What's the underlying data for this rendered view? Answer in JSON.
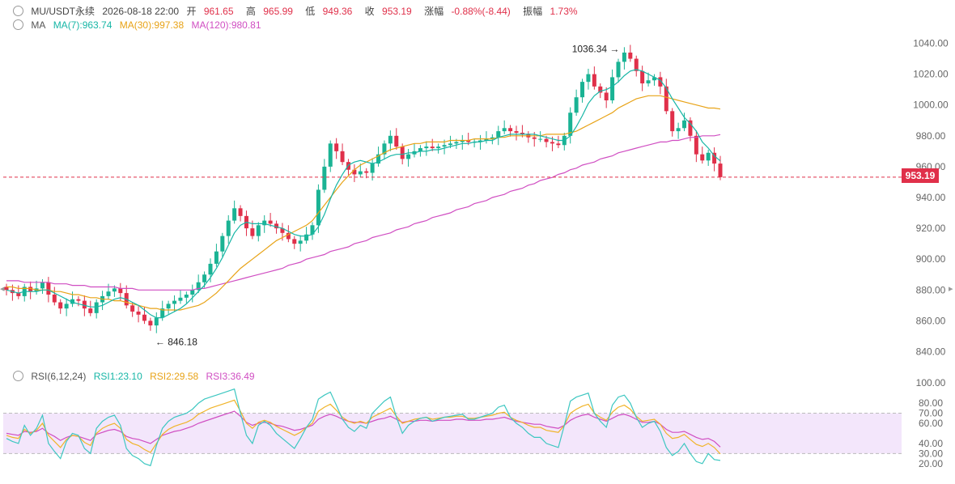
{
  "header": {
    "symbol": "MU/USDT永续",
    "datetime": "2026-08-18 22:00",
    "open_label": "开",
    "open": "961.65",
    "high_label": "高",
    "high": "965.99",
    "low_label": "低",
    "low": "949.36",
    "close_label": "收",
    "close": "953.19",
    "change_label": "涨幅",
    "change": "-0.88%(-8.44)",
    "amp_label": "振幅",
    "amp": "1.73%"
  },
  "ma_legend": {
    "label": "MA",
    "ma7": "MA(7):963.74",
    "ma30": "MA(30):997.38",
    "ma120": "MA(120):980.81"
  },
  "rsi_legend": {
    "label": "RSI(6,12,24)",
    "rsi1": "RSI1:23.10",
    "rsi2": "RSI2:29.58",
    "rsi3": "RSI3:36.49"
  },
  "price_tag": "953.19",
  "annotations": {
    "high_mark": "1036.34",
    "low_mark": "846.18"
  },
  "colors": {
    "up": "#1ab394",
    "down": "#e0304a",
    "ma7": "#17b6a6",
    "ma30": "#e8a317",
    "ma120": "#d04ec2",
    "rsi1": "#3dc7c1",
    "rsi2": "#f0b429",
    "rsi3": "#d04ec2",
    "rsi_band": "#f3e6fb"
  },
  "chart_data": {
    "type": "candlestick",
    "price_axis_ticks": [
      "1040.00",
      "1020.00",
      "1000.00",
      "980.00",
      "960.00",
      "940.00",
      "920.00",
      "900.00",
      "880.00",
      "860.00",
      "840.00"
    ],
    "price_ylim": [
      835,
      1045
    ],
    "rsi_axis_ticks": [
      "100.00",
      "80.00",
      "70.00",
      "60.00",
      "40.00",
      "30.00",
      "20.00"
    ],
    "rsi_ylim": [
      15,
      105
    ],
    "rsi_band": [
      30,
      70
    ],
    "last_price": 953.19,
    "close": [
      880,
      878,
      876,
      882,
      879,
      881,
      885,
      877,
      872,
      868,
      871,
      874,
      873,
      868,
      865,
      872,
      876,
      879,
      881,
      878,
      870,
      866,
      864,
      860,
      857,
      862,
      868,
      871,
      873,
      875,
      877,
      880,
      885,
      890,
      897,
      905,
      915,
      925,
      933,
      928,
      920,
      915,
      922,
      925,
      923,
      920,
      917,
      913,
      910,
      912,
      916,
      922,
      945,
      960,
      975,
      970,
      963,
      958,
      955,
      957,
      956,
      962,
      968,
      975,
      980,
      973,
      965,
      968,
      970,
      972,
      973,
      972,
      973,
      974,
      975,
      976,
      977,
      976,
      976,
      977,
      978,
      979,
      983,
      985,
      983,
      982,
      981,
      979,
      978,
      978,
      976,
      975,
      974,
      980,
      995,
      1005,
      1015,
      1020,
      1012,
      1008,
      1003,
      1018,
      1028,
      1034,
      1030,
      1022,
      1014,
      1016,
      1018,
      1012,
      996,
      983,
      985,
      990,
      980,
      968,
      964,
      969,
      962,
      953.19
    ],
    "ma7": [
      880,
      879,
      878,
      879,
      879,
      879,
      880,
      880,
      878,
      876,
      874,
      872,
      871,
      870,
      869,
      869,
      870,
      872,
      874,
      875,
      874,
      872,
      870,
      867,
      864,
      862,
      862,
      864,
      866,
      868,
      871,
      875,
      879,
      883,
      888,
      894,
      901,
      909,
      917,
      922,
      924,
      923,
      923,
      923,
      922,
      921,
      920,
      918,
      916,
      915,
      915,
      916,
      921,
      929,
      939,
      948,
      955,
      961,
      963,
      964,
      963,
      962,
      963,
      965,
      967,
      968,
      968,
      969,
      969,
      970,
      970,
      971,
      971,
      972,
      973,
      974,
      975,
      975,
      976,
      976,
      977,
      977,
      979,
      980,
      981,
      981,
      981,
      981,
      981,
      980,
      979,
      978,
      977,
      977,
      980,
      986,
      993,
      1001,
      1006,
      1009,
      1010,
      1012,
      1015,
      1019,
      1022,
      1023,
      1022,
      1020,
      1018,
      1016,
      1011,
      1004,
      998,
      992,
      988,
      983,
      976,
      972,
      967,
      963.74
    ],
    "ma30": [
      882,
      882,
      881,
      881,
      881,
      880,
      880,
      880,
      879,
      879,
      878,
      877,
      877,
      876,
      875,
      875,
      874,
      874,
      873,
      873,
      872,
      871,
      870,
      869,
      868,
      868,
      867,
      867,
      867,
      867,
      868,
      869,
      870,
      872,
      875,
      878,
      882,
      886,
      890,
      894,
      897,
      900,
      903,
      906,
      909,
      912,
      914,
      916,
      918,
      920,
      922,
      925,
      930,
      935,
      940,
      945,
      950,
      954,
      958,
      961,
      963,
      965,
      967,
      969,
      971,
      972,
      973,
      974,
      975,
      975,
      976,
      976,
      976,
      976,
      977,
      977,
      977,
      977,
      978,
      978,
      978,
      978,
      979,
      979,
      980,
      980,
      980,
      980,
      980,
      980,
      981,
      981,
      981,
      981,
      982,
      983,
      985,
      987,
      989,
      991,
      993,
      995,
      998,
      1000,
      1002,
      1004,
      1005,
      1006,
      1006,
      1006,
      1005,
      1004,
      1003,
      1002,
      1001,
      1000,
      999,
      998,
      998,
      997.38
    ],
    "ma120": [
      886,
      886,
      886,
      885,
      885,
      885,
      885,
      885,
      884,
      884,
      884,
      883,
      883,
      883,
      882,
      882,
      882,
      882,
      882,
      881,
      881,
      881,
      880,
      880,
      880,
      880,
      880,
      880,
      880,
      880,
      880,
      880,
      881,
      881,
      882,
      883,
      884,
      885,
      886,
      887,
      888,
      889,
      890,
      891,
      892,
      893,
      894,
      896,
      897,
      898,
      900,
      901,
      902,
      903,
      905,
      906,
      907,
      908,
      910,
      911,
      912,
      914,
      915,
      916,
      917,
      919,
      920,
      921,
      923,
      924,
      925,
      927,
      928,
      929,
      930,
      932,
      933,
      934,
      936,
      937,
      938,
      940,
      941,
      942,
      944,
      945,
      946,
      948,
      949,
      951,
      952,
      953,
      955,
      956,
      958,
      959,
      961,
      962,
      963,
      965,
      966,
      967,
      969,
      970,
      971,
      972,
      973,
      974,
      975,
      976,
      976,
      977,
      977,
      978,
      979,
      979,
      980,
      980,
      980,
      980.81
    ],
    "rsi6": [
      45,
      42,
      40,
      58,
      48,
      55,
      68,
      40,
      32,
      25,
      42,
      50,
      48,
      35,
      30,
      55,
      62,
      66,
      68,
      58,
      35,
      28,
      25,
      20,
      18,
      38,
      55,
      62,
      66,
      68,
      70,
      74,
      80,
      84,
      86,
      88,
      90,
      92,
      94,
      70,
      48,
      40,
      58,
      62,
      58,
      50,
      45,
      40,
      35,
      45,
      56,
      64,
      84,
      88,
      91,
      78,
      64,
      56,
      52,
      58,
      55,
      70,
      76,
      82,
      86,
      66,
      50,
      58,
      62,
      65,
      66,
      62,
      64,
      66,
      67,
      68,
      69,
      64,
      64,
      66,
      68,
      70,
      76,
      78,
      66,
      60,
      56,
      50,
      46,
      46,
      40,
      38,
      36,
      58,
      82,
      86,
      88,
      90,
      70,
      62,
      56,
      78,
      86,
      88,
      80,
      66,
      56,
      60,
      62,
      52,
      36,
      28,
      32,
      40,
      30,
      22,
      20,
      30,
      24,
      23.1
    ],
    "rsi12": [
      48,
      46,
      45,
      54,
      50,
      53,
      60,
      48,
      42,
      36,
      44,
      48,
      47,
      41,
      38,
      50,
      55,
      58,
      60,
      55,
      44,
      40,
      38,
      34,
      31,
      40,
      49,
      54,
      57,
      59,
      61,
      64,
      69,
      72,
      75,
      77,
      79,
      81,
      83,
      72,
      60,
      55,
      61,
      63,
      61,
      57,
      54,
      51,
      48,
      51,
      56,
      60,
      72,
      76,
      79,
      73,
      66,
      62,
      60,
      62,
      60,
      66,
      69,
      72,
      75,
      67,
      60,
      62,
      64,
      65,
      66,
      64,
      65,
      66,
      66,
      67,
      67,
      65,
      65,
      66,
      67,
      68,
      70,
      71,
      66,
      63,
      61,
      58,
      56,
      56,
      53,
      52,
      51,
      58,
      70,
      74,
      77,
      79,
      70,
      66,
      63,
      71,
      76,
      78,
      74,
      67,
      62,
      63,
      64,
      59,
      50,
      45,
      46,
      49,
      44,
      39,
      37,
      40,
      36,
      29.58
    ],
    "rsi24": [
      50,
      49,
      48,
      52,
      51,
      52,
      55,
      50,
      47,
      43,
      46,
      48,
      47,
      45,
      43,
      49,
      51,
      53,
      54,
      52,
      47,
      45,
      44,
      42,
      40,
      44,
      48,
      50,
      52,
      53,
      55,
      57,
      60,
      62,
      64,
      66,
      68,
      70,
      72,
      67,
      61,
      58,
      60,
      61,
      60,
      58,
      57,
      55,
      53,
      54,
      56,
      58,
      64,
      67,
      69,
      67,
      64,
      62,
      61,
      61,
      60,
      62,
      64,
      65,
      67,
      64,
      61,
      62,
      62,
      63,
      63,
      62,
      63,
      63,
      63,
      64,
      64,
      63,
      63,
      63,
      64,
      64,
      65,
      66,
      64,
      62,
      61,
      60,
      59,
      59,
      57,
      56,
      55,
      58,
      63,
      66,
      68,
      69,
      66,
      64,
      62,
      65,
      68,
      69,
      67,
      64,
      61,
      61,
      62,
      59,
      54,
      51,
      51,
      52,
      49,
      46,
      44,
      45,
      42,
      36.49
    ]
  }
}
